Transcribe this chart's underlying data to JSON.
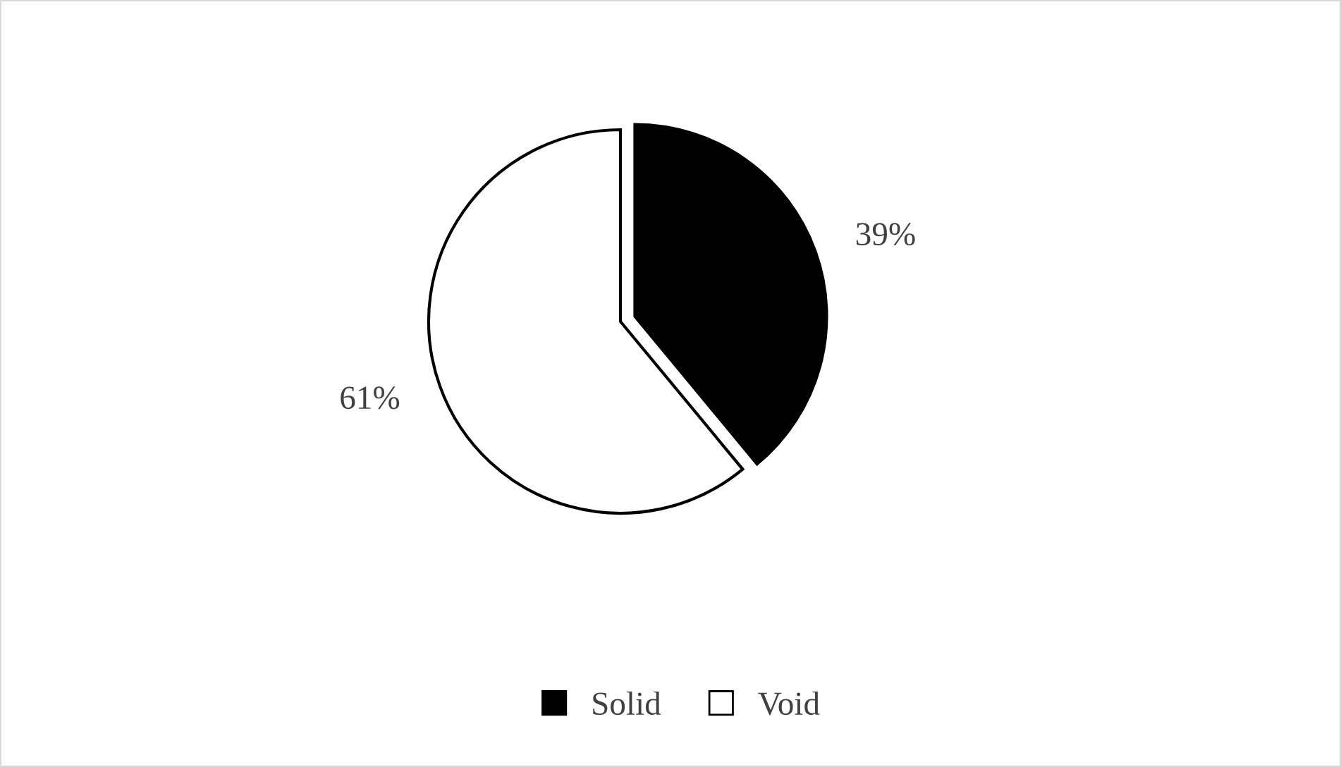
{
  "chart_data": {
    "type": "pie",
    "categories": [
      "Solid",
      "Void"
    ],
    "values": [
      39,
      61
    ],
    "colors": [
      "#000000",
      "#ffffff"
    ],
    "value_labels": [
      "39%",
      "61%"
    ],
    "legend": "bottom"
  }
}
